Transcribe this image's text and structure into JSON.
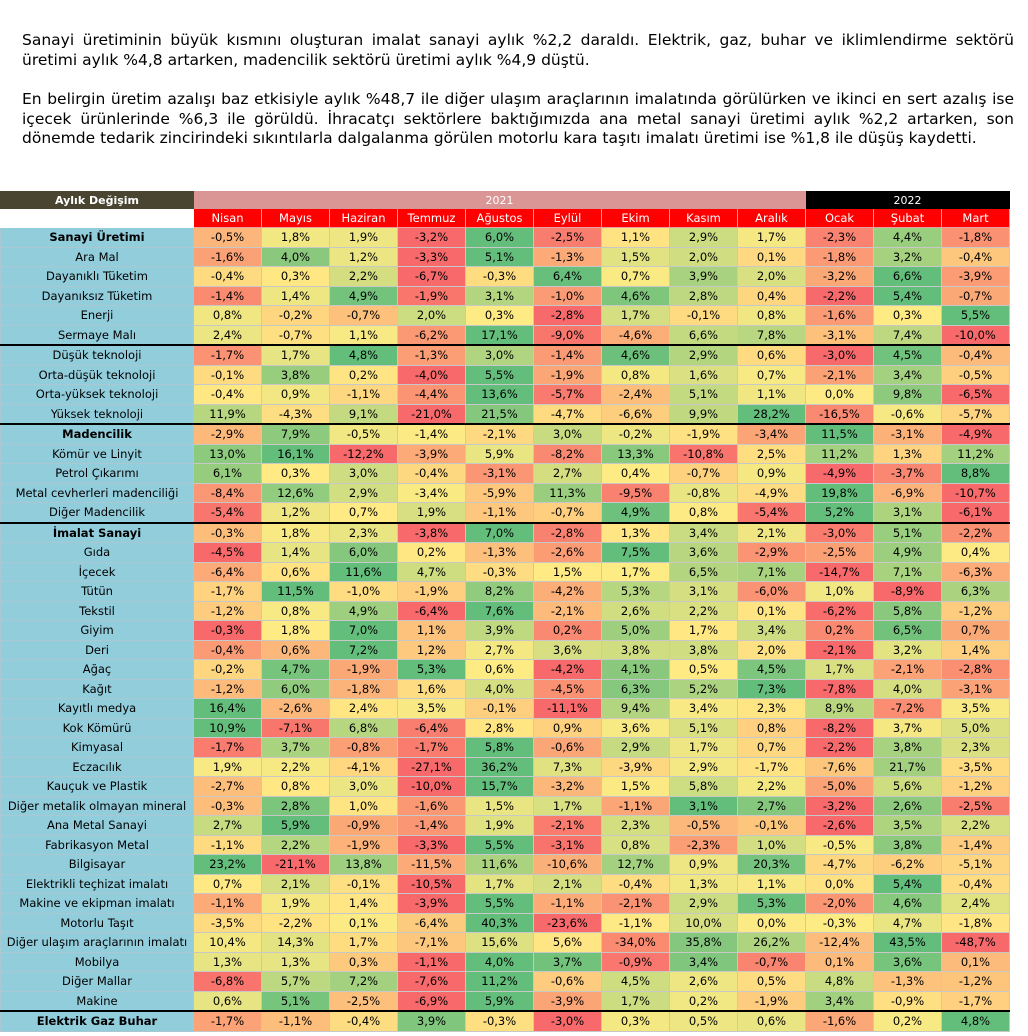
{
  "intro": {
    "p1": "Sanayi üretiminin büyük kısmını oluşturan imalat sanayi aylık %2,2 daraldı. Elektrik, gaz, buhar ve iklimlendirme sektörü üretimi aylık %4,8 artarken, madencilik sektörü üretimi aylık %4,9 düştü.",
    "p2": "En belirgin üretim azalışı baz etkisiyle aylık %48,7 ile diğer ulaşım araçlarının imalatında görülürken ve ikinci en sert azalış ise içecek ürünlerinde %6,3 ile görüldü. İhracatçı sektörlere baktığımızda ana metal sanayi üretimi aylık %2,2 artarken, son dönemde tedarik zincirindeki sıkıntılarla dalgalanma görülen motorlu kara taşıtı imalatı üretimi ise %1,8 ile düşüş kaydetti."
  },
  "table": {
    "title": "Aylık Değişim",
    "years": [
      {
        "label": "2021",
        "span": 9
      },
      {
        "label": "2022",
        "span": 3
      }
    ],
    "months": [
      "Nisan",
      "Mayıs",
      "Haziran",
      "Temmuz",
      "Ağustos",
      "Eylül",
      "Ekim",
      "Kasım",
      "Aralık",
      "Ocak",
      "Şubat",
      "Mart"
    ],
    "scale": {
      "low": "#f8696b",
      "mid": "#ffeb84",
      "high": "#63be7b"
    },
    "rows": [
      {
        "label": "Sanayi Üretimi",
        "section": true,
        "values": [
          "-0,5%",
          "1,8%",
          "1,9%",
          "-3,2%",
          "6,0%",
          "-2,5%",
          "1,1%",
          "2,9%",
          "1,7%",
          "-2,3%",
          "4,4%",
          "-1,8%"
        ]
      },
      {
        "label": "Ara Mal",
        "values": [
          "-1,6%",
          "4,0%",
          "1,2%",
          "-3,3%",
          "5,1%",
          "-1,3%",
          "1,5%",
          "2,0%",
          "0,1%",
          "-1,8%",
          "3,2%",
          "-0,4%"
        ]
      },
      {
        "label": "Dayanıklı Tüketim",
        "values": [
          "-0,4%",
          "0,3%",
          "2,2%",
          "-6,7%",
          "-0,3%",
          "6,4%",
          "0,7%",
          "3,9%",
          "2,0%",
          "-3,2%",
          "6,6%",
          "-3,9%"
        ]
      },
      {
        "label": "Dayanıksız Tüketim",
        "values": [
          "-1,4%",
          "1,4%",
          "4,9%",
          "-1,9%",
          "3,1%",
          "-1,0%",
          "4,6%",
          "2,8%",
          "0,4%",
          "-2,2%",
          "5,4%",
          "-0,7%"
        ]
      },
      {
        "label": "Enerji",
        "values": [
          "0,8%",
          "-0,2%",
          "-0,7%",
          "2,0%",
          "0,3%",
          "-2,8%",
          "1,7%",
          "-0,1%",
          "0,8%",
          "-1,6%",
          "0,3%",
          "5,5%"
        ]
      },
      {
        "label": "Sermaye Malı",
        "values": [
          "2,4%",
          "-0,7%",
          "1,1%",
          "-6,2%",
          "17,1%",
          "-9,0%",
          "-4,6%",
          "6,6%",
          "7,8%",
          "-3,1%",
          "7,4%",
          "-10,0%"
        ]
      },
      {
        "label": "Düşük teknoloji",
        "sectop": true,
        "values": [
          "-1,7%",
          "1,7%",
          "4,8%",
          "-1,3%",
          "3,0%",
          "-1,4%",
          "4,6%",
          "2,9%",
          "0,6%",
          "-3,0%",
          "4,5%",
          "-0,4%"
        ]
      },
      {
        "label": "Orta-düşük teknoloji",
        "values": [
          "-0,1%",
          "3,8%",
          "0,2%",
          "-4,0%",
          "5,5%",
          "-1,9%",
          "0,8%",
          "1,6%",
          "0,7%",
          "-2,1%",
          "3,4%",
          "-0,5%"
        ]
      },
      {
        "label": "Orta-yüksek teknoloji",
        "values": [
          "-0,4%",
          "0,9%",
          "-1,1%",
          "-4,4%",
          "13,6%",
          "-5,7%",
          "-2,4%",
          "5,1%",
          "1,1%",
          "0,0%",
          "9,8%",
          "-6,5%"
        ]
      },
      {
        "label": "Yüksek teknoloji",
        "values": [
          "11,9%",
          "-4,3%",
          "9,1%",
          "-21,0%",
          "21,5%",
          "-4,7%",
          "-6,6%",
          "9,9%",
          "28,2%",
          "-16,5%",
          "-0,6%",
          "-5,7%"
        ]
      },
      {
        "label": "Madencilik",
        "section": true,
        "sectop": true,
        "values": [
          "-2,9%",
          "7,9%",
          "-0,5%",
          "-1,4%",
          "-2,1%",
          "3,0%",
          "-0,2%",
          "-1,9%",
          "-3,4%",
          "11,5%",
          "-3,1%",
          "-4,9%"
        ]
      },
      {
        "label": "Kömür ve Linyit",
        "values": [
          "13,0%",
          "16,1%",
          "-12,2%",
          "-3,9%",
          "5,9%",
          "-8,2%",
          "13,3%",
          "-10,8%",
          "2,5%",
          "11,2%",
          "1,3%",
          "11,2%"
        ]
      },
      {
        "label": "Petrol Çıkarımı",
        "values": [
          "6,1%",
          "0,3%",
          "3,0%",
          "-0,4%",
          "-3,1%",
          "2,7%",
          "0,4%",
          "-0,7%",
          "0,9%",
          "-4,9%",
          "-3,7%",
          "8,8%"
        ]
      },
      {
        "label": "Metal cevherleri madenciliği",
        "values": [
          "-8,4%",
          "12,6%",
          "2,9%",
          "-3,4%",
          "-5,9%",
          "11,3%",
          "-9,5%",
          "-0,8%",
          "-4,9%",
          "19,8%",
          "-6,9%",
          "-10,7%"
        ]
      },
      {
        "label": "Diğer Madencilik",
        "values": [
          "-5,4%",
          "1,2%",
          "0,7%",
          "1,9%",
          "-1,1%",
          "-0,7%",
          "4,9%",
          "0,8%",
          "-5,4%",
          "5,2%",
          "3,1%",
          "-6,1%"
        ]
      },
      {
        "label": "İmalat Sanayi",
        "section": true,
        "sectop": true,
        "values": [
          "-0,3%",
          "1,8%",
          "2,3%",
          "-3,8%",
          "7,0%",
          "-2,8%",
          "1,3%",
          "3,4%",
          "2,1%",
          "-3,0%",
          "5,1%",
          "-2,2%"
        ]
      },
      {
        "label": "Gıda",
        "values": [
          "-4,5%",
          "1,4%",
          "6,0%",
          "0,2%",
          "-1,3%",
          "-2,6%",
          "7,5%",
          "3,6%",
          "-2,9%",
          "-2,5%",
          "4,9%",
          "0,4%"
        ]
      },
      {
        "label": "İçecek",
        "values": [
          "-6,4%",
          "0,6%",
          "11,6%",
          "4,7%",
          "-0,3%",
          "1,5%",
          "1,7%",
          "6,5%",
          "7,1%",
          "-14,7%",
          "7,1%",
          "-6,3%"
        ]
      },
      {
        "label": "Tütün",
        "values": [
          "-1,7%",
          "11,5%",
          "-1,0%",
          "-1,9%",
          "8,2%",
          "-4,2%",
          "5,3%",
          "3,1%",
          "-6,0%",
          "1,0%",
          "-8,9%",
          "6,3%"
        ]
      },
      {
        "label": "Tekstil",
        "values": [
          "-1,2%",
          "0,8%",
          "4,9%",
          "-6,4%",
          "7,6%",
          "-2,1%",
          "2,6%",
          "2,2%",
          "0,1%",
          "-6,2%",
          "5,8%",
          "-1,2%"
        ]
      },
      {
        "label": "Giyim",
        "values": [
          "-0,3%",
          "1,8%",
          "7,0%",
          "1,1%",
          "3,9%",
          "0,2%",
          "5,0%",
          "1,7%",
          "3,4%",
          "0,2%",
          "6,5%",
          "0,7%"
        ]
      },
      {
        "label": "Deri",
        "values": [
          "-0,4%",
          "0,6%",
          "7,2%",
          "1,2%",
          "2,7%",
          "3,6%",
          "3,8%",
          "3,8%",
          "2,0%",
          "-2,1%",
          "3,2%",
          "1,4%"
        ]
      },
      {
        "label": "Ağaç",
        "values": [
          "-0,2%",
          "4,7%",
          "-1,9%",
          "5,3%",
          "0,6%",
          "-4,2%",
          "4,1%",
          "0,5%",
          "4,5%",
          "1,7%",
          "-2,1%",
          "-2,8%"
        ]
      },
      {
        "label": "Kağıt",
        "values": [
          "-1,2%",
          "6,0%",
          "-1,8%",
          "1,6%",
          "4,0%",
          "-4,5%",
          "6,3%",
          "5,2%",
          "7,3%",
          "-7,8%",
          "4,0%",
          "-3,1%"
        ]
      },
      {
        "label": "Kayıtlı medya",
        "values": [
          "16,4%",
          "-2,6%",
          "2,4%",
          "3,5%",
          "-0,1%",
          "-11,1%",
          "9,4%",
          "3,4%",
          "2,3%",
          "8,9%",
          "-7,2%",
          "3,5%"
        ]
      },
      {
        "label": "Kok Kömürü",
        "values": [
          "10,9%",
          "-7,1%",
          "6,8%",
          "-6,4%",
          "2,8%",
          "0,9%",
          "3,6%",
          "5,1%",
          "0,8%",
          "-8,2%",
          "3,7%",
          "5,0%"
        ]
      },
      {
        "label": "Kimyasal",
        "values": [
          "-1,7%",
          "3,7%",
          "-0,8%",
          "-1,7%",
          "5,8%",
          "-0,6%",
          "2,9%",
          "1,7%",
          "0,7%",
          "-2,2%",
          "3,8%",
          "2,3%"
        ]
      },
      {
        "label": "Eczacılık",
        "values": [
          "1,9%",
          "2,2%",
          "-4,1%",
          "-27,1%",
          "36,2%",
          "7,3%",
          "-3,9%",
          "2,9%",
          "-1,7%",
          "-7,6%",
          "21,7%",
          "-3,5%"
        ]
      },
      {
        "label": "Kauçuk ve Plastik",
        "values": [
          "-2,7%",
          "0,8%",
          "3,0%",
          "-10,0%",
          "15,7%",
          "-3,2%",
          "1,5%",
          "5,8%",
          "2,2%",
          "-5,0%",
          "5,6%",
          "-1,2%"
        ]
      },
      {
        "label": "Diğer metalik olmayan mineral",
        "values": [
          "-0,3%",
          "2,8%",
          "1,0%",
          "-1,6%",
          "1,5%",
          "1,7%",
          "-1,1%",
          "3,1%",
          "2,7%",
          "-3,2%",
          "2,6%",
          "-2,5%"
        ]
      },
      {
        "label": "Ana Metal Sanayi",
        "values": [
          "2,7%",
          "5,9%",
          "-0,9%",
          "-1,4%",
          "1,9%",
          "-2,1%",
          "2,3%",
          "-0,5%",
          "-0,1%",
          "-2,6%",
          "3,5%",
          "2,2%"
        ]
      },
      {
        "label": "Fabrikasyon Metal",
        "values": [
          "-1,1%",
          "2,2%",
          "-1,9%",
          "-3,3%",
          "5,5%",
          "-3,1%",
          "0,8%",
          "-2,3%",
          "1,0%",
          "-0,5%",
          "3,8%",
          "-1,4%"
        ]
      },
      {
        "label": "Bilgisayar",
        "values": [
          "23,2%",
          "-21,1%",
          "13,8%",
          "-11,5%",
          "11,6%",
          "-10,6%",
          "12,7%",
          "0,9%",
          "20,3%",
          "-4,7%",
          "-6,2%",
          "-5,1%"
        ]
      },
      {
        "label": "Elektrikli teçhizat imalatı",
        "values": [
          "0,7%",
          "2,1%",
          "-0,1%",
          "-10,5%",
          "1,7%",
          "2,1%",
          "-0,4%",
          "1,3%",
          "1,1%",
          "0,0%",
          "5,4%",
          "-0,4%"
        ]
      },
      {
        "label": "Makine ve ekipman imalatı",
        "values": [
          "-1,1%",
          "1,9%",
          "1,4%",
          "-3,9%",
          "5,5%",
          "-1,1%",
          "-2,1%",
          "2,9%",
          "5,3%",
          "-2,0%",
          "4,6%",
          "2,4%"
        ]
      },
      {
        "label": "Motorlu Taşıt",
        "values": [
          "-3,5%",
          "-2,2%",
          "0,1%",
          "-6,4%",
          "40,3%",
          "-23,6%",
          "-1,1%",
          "10,0%",
          "0,0%",
          "-0,3%",
          "4,7%",
          "-1,8%"
        ]
      },
      {
        "label": "Diğer ulaşım araçlarının imalatı",
        "values": [
          "10,4%",
          "14,3%",
          "1,7%",
          "-7,1%",
          "15,6%",
          "5,6%",
          "-34,0%",
          "35,8%",
          "26,2%",
          "-12,4%",
          "43,5%",
          "-48,7%"
        ]
      },
      {
        "label": "Mobilya",
        "values": [
          "1,3%",
          "1,3%",
          "0,3%",
          "-1,1%",
          "4,0%",
          "3,7%",
          "-0,9%",
          "3,4%",
          "-0,7%",
          "0,1%",
          "3,6%",
          "0,1%"
        ]
      },
      {
        "label": "Diğer Mallar",
        "values": [
          "-6,8%",
          "5,7%",
          "7,2%",
          "-7,6%",
          "11,2%",
          "-0,6%",
          "4,5%",
          "2,6%",
          "0,5%",
          "4,8%",
          "-1,3%",
          "-1,2%"
        ]
      },
      {
        "label": "Makine",
        "values": [
          "0,6%",
          "5,1%",
          "-2,5%",
          "-6,9%",
          "5,9%",
          "-3,9%",
          "1,7%",
          "0,2%",
          "-1,9%",
          "3,4%",
          "-0,9%",
          "-1,7%"
        ]
      },
      {
        "label": "Elektrik Gaz Buhar",
        "section": true,
        "sectop": true,
        "values": [
          "-1,7%",
          "-1,1%",
          "-0,4%",
          "3,9%",
          "-0,3%",
          "-3,0%",
          "0,3%",
          "0,5%",
          "0,6%",
          "-1,6%",
          "0,2%",
          "4,8%"
        ]
      }
    ]
  }
}
